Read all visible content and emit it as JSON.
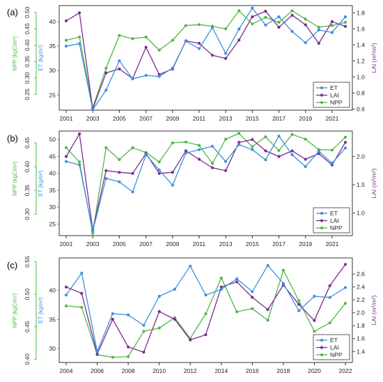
{
  "colors": {
    "ET": "#3d8fe0",
    "LAI": "#7b2d8e",
    "NPP": "#4fb847",
    "frame": "#333333",
    "text": "#222222"
  },
  "chart_data": [
    {
      "type": "line",
      "panel_label": "(a)",
      "x": [
        2001,
        2002,
        2003,
        2004,
        2005,
        2006,
        2007,
        2008,
        2009,
        2010,
        2011,
        2012,
        2013,
        2014,
        2015,
        2016,
        2017,
        2018,
        2019,
        2020,
        2021,
        2022
      ],
      "x_ticks": [
        2001,
        2003,
        2005,
        2007,
        2009,
        2011,
        2013,
        2015,
        2017,
        2019,
        2021
      ],
      "xlim": [
        2001,
        2022
      ],
      "legend_position": "bottom-right",
      "grid": false,
      "axes": {
        "NPP": {
          "label": "NPP (kgC/m²)",
          "side": "left-outer",
          "ylim": [
            0.202,
            0.521
          ],
          "ticks": [
            0.25,
            0.3,
            0.35,
            0.4,
            0.45,
            0.5
          ]
        },
        "ET": {
          "label": "ET (kg/m²)",
          "side": "left-inner",
          "ylim": [
            21.9,
            43.3
          ],
          "ticks": [
            25,
            30,
            35,
            40
          ]
        },
        "LAI": {
          "label": "LAI (m²/m²)",
          "side": "right",
          "ylim": [
            0.586,
            1.89
          ],
          "ticks": [
            0.6,
            0.8,
            1.0,
            1.2,
            1.4,
            1.6,
            1.8
          ]
        }
      },
      "series": [
        {
          "name": "ET",
          "axis": "ET",
          "values": [
            35.0,
            35.5,
            22.0,
            26.0,
            32.0,
            28.3,
            29.0,
            28.8,
            30.5,
            36.0,
            34.5,
            38.8,
            33.5,
            38.5,
            42.8,
            39.3,
            41.0,
            38.0,
            35.7,
            38.3,
            37.8,
            41.0
          ]
        },
        {
          "name": "LAI",
          "axis": "LAI",
          "values": [
            1.7,
            1.8,
            0.6,
            1.05,
            1.1,
            0.98,
            1.37,
            1.03,
            1.1,
            1.45,
            1.42,
            1.27,
            1.23,
            1.46,
            1.75,
            1.82,
            1.62,
            1.77,
            1.65,
            1.42,
            1.69,
            1.63
          ]
        },
        {
          "name": "NPP",
          "axis": "NPP",
          "values": [
            0.415,
            0.425,
            0.21,
            0.33,
            0.43,
            0.42,
            0.425,
            0.385,
            0.415,
            0.46,
            0.463,
            0.458,
            0.45,
            0.505,
            0.465,
            0.485,
            0.47,
            0.505,
            0.48,
            0.455,
            0.46,
            0.47
          ]
        }
      ]
    },
    {
      "type": "line",
      "panel_label": "(b)",
      "x": [
        2001,
        2002,
        2003,
        2004,
        2005,
        2006,
        2007,
        2008,
        2009,
        2010,
        2011,
        2012,
        2013,
        2014,
        2015,
        2016,
        2017,
        2018,
        2019,
        2020,
        2021,
        2022
      ],
      "x_ticks": [
        2001,
        2003,
        2005,
        2007,
        2009,
        2011,
        2013,
        2015,
        2017,
        2019,
        2021
      ],
      "xlim": [
        2001,
        2022
      ],
      "legend_position": "bottom-right",
      "grid": false,
      "axes": {
        "NPP": {
          "label": "NPP (kgC/m²)",
          "side": "left-outer",
          "ylim": [
            0.255,
            0.475
          ],
          "ticks": [
            0.3,
            0.35,
            0.4,
            0.45
          ]
        },
        "ET": {
          "label": "ET (kg/m²)",
          "side": "left-inner",
          "ylim": [
            21.6,
            52.5
          ],
          "ticks": [
            25,
            30,
            35,
            40,
            45,
            50
          ]
        },
        "LAI": {
          "label": "LAI (m²/m²)",
          "side": "right",
          "ylim": [
            0.6,
            2.45
          ],
          "ticks": [
            1.0,
            1.5,
            2.0
          ]
        }
      },
      "series": [
        {
          "name": "ET",
          "axis": "ET",
          "values": [
            43.5,
            42.5,
            23.0,
            38.5,
            37.5,
            34.5,
            45.5,
            41.0,
            36.5,
            46.0,
            47.0,
            48.0,
            43.5,
            48.5,
            47.0,
            44.0,
            51.0,
            45.5,
            42.0,
            46.5,
            43.0,
            47.5
          ]
        },
        {
          "name": "LAI",
          "axis": "LAI",
          "values": [
            2.0,
            2.4,
            0.7,
            1.75,
            1.72,
            1.7,
            2.05,
            1.7,
            1.72,
            2.1,
            1.95,
            1.8,
            1.75,
            2.25,
            2.3,
            2.1,
            2.0,
            2.1,
            1.95,
            2.05,
            1.85,
            2.25
          ]
        },
        {
          "name": "NPP",
          "axis": "NPP",
          "values": [
            0.44,
            0.41,
            0.26,
            0.44,
            0.415,
            0.44,
            0.43,
            0.41,
            0.45,
            0.452,
            0.445,
            0.407,
            0.458,
            0.47,
            0.442,
            0.463,
            0.434,
            0.468,
            0.458,
            0.436,
            0.435,
            0.462
          ]
        }
      ]
    },
    {
      "type": "line",
      "panel_label": "(c)",
      "x": [
        2004,
        2005,
        2006,
        2007,
        2008,
        2009,
        2010,
        2011,
        2012,
        2013,
        2014,
        2015,
        2016,
        2017,
        2018,
        2019,
        2020,
        2021,
        2022
      ],
      "x_ticks": [
        2004,
        2006,
        2008,
        2010,
        2012,
        2014,
        2016,
        2018,
        2020,
        2022
      ],
      "xlim": [
        2004,
        2022
      ],
      "legend_position": "bottom-right",
      "grid": false,
      "axes": {
        "NPP": {
          "label": "NPP (kgC/m²)",
          "side": "left-outer",
          "ylim": [
            0.395,
            0.556
          ],
          "ticks": [
            0.4,
            0.45,
            0.5,
            0.55
          ]
        },
        "ET": {
          "label": "ET (kg/m²)",
          "side": "left-inner",
          "ylim": [
            27.6,
            45.6
          ],
          "ticks": [
            30,
            35,
            40
          ]
        },
        "LAI": {
          "label": "LAI (m²/m²)",
          "side": "right",
          "ylim": [
            1.23,
            2.85
          ],
          "ticks": [
            1.4,
            1.6,
            1.8,
            2.0,
            2.2,
            2.4,
            2.6
          ]
        }
      },
      "series": [
        {
          "name": "ET",
          "axis": "ET",
          "values": [
            39.2,
            43.0,
            29.5,
            36.0,
            35.8,
            34.0,
            39.0,
            40.2,
            44.2,
            39.2,
            40.2,
            42.0,
            39.8,
            44.3,
            41.2,
            36.5,
            39.0,
            38.8,
            40.5
          ]
        },
        {
          "name": "LAI",
          "axis": "LAI",
          "values": [
            2.4,
            2.3,
            1.36,
            1.9,
            1.47,
            1.39,
            2.02,
            1.9,
            1.58,
            1.66,
            2.4,
            2.48,
            2.24,
            2.05,
            2.43,
            2.13,
            1.88,
            2.42,
            2.75
          ]
        },
        {
          "name": "NPP",
          "axis": "NPP",
          "values": [
            0.482,
            0.48,
            0.407,
            0.403,
            0.404,
            0.443,
            0.448,
            0.464,
            0.432,
            0.47,
            0.525,
            0.473,
            0.478,
            0.46,
            0.537,
            0.49,
            0.443,
            0.456,
            0.486
          ]
        }
      ]
    }
  ]
}
